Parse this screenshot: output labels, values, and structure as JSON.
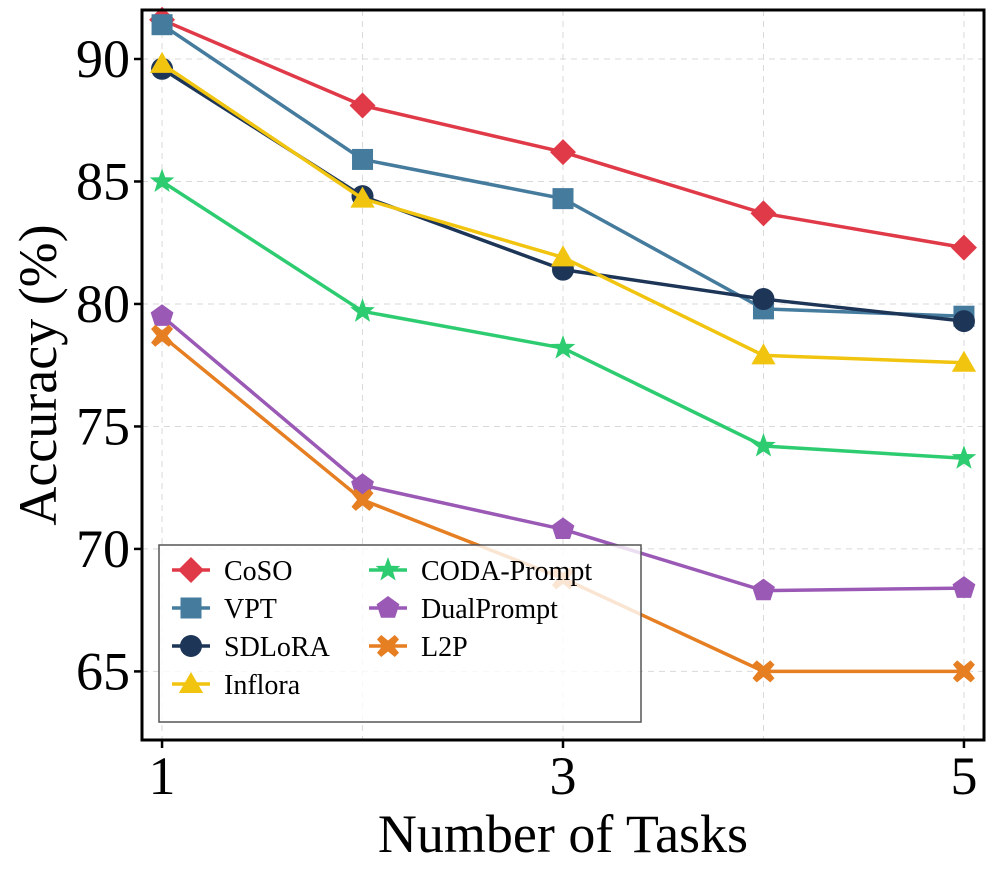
{
  "chart_data": {
    "type": "line",
    "title": "",
    "xlabel": "Number of Tasks",
    "ylabel": "Accuracy (%)",
    "x": [
      1,
      2,
      3,
      4,
      5
    ],
    "xticks": [
      1,
      3,
      5
    ],
    "yticks": [
      65,
      70,
      75,
      80,
      85,
      90
    ],
    "xlim": [
      0.9,
      5.1
    ],
    "ylim": [
      62.2,
      92.0
    ],
    "grid": true,
    "legend_position": "lower-left",
    "series": [
      {
        "name": "CoSO",
        "color": "#e03a48",
        "marker": "diamond",
        "values": [
          91.6,
          88.1,
          86.2,
          83.7,
          82.3
        ]
      },
      {
        "name": "VPT",
        "color": "#457b9d",
        "marker": "square",
        "values": [
          91.4,
          85.9,
          84.3,
          79.8,
          79.5
        ]
      },
      {
        "name": "SDLoRA",
        "color": "#1d3557",
        "marker": "circle",
        "values": [
          89.6,
          84.4,
          81.4,
          80.2,
          79.3
        ]
      },
      {
        "name": "Inflora",
        "color": "#f1c40f",
        "marker": "triangle",
        "values": [
          89.8,
          84.3,
          81.9,
          77.9,
          77.6
        ]
      },
      {
        "name": "CODA-Prompt",
        "color": "#2ecc71",
        "marker": "star",
        "values": [
          85.0,
          79.7,
          78.2,
          74.2,
          73.7
        ]
      },
      {
        "name": "DualPrompt",
        "color": "#9b59b6",
        "marker": "pentagon",
        "values": [
          79.5,
          72.6,
          70.8,
          68.3,
          68.4
        ]
      },
      {
        "name": "L2P",
        "color": "#e67e22",
        "marker": "x",
        "values": [
          78.7,
          72.0,
          68.8,
          65.0,
          65.0
        ]
      }
    ]
  }
}
